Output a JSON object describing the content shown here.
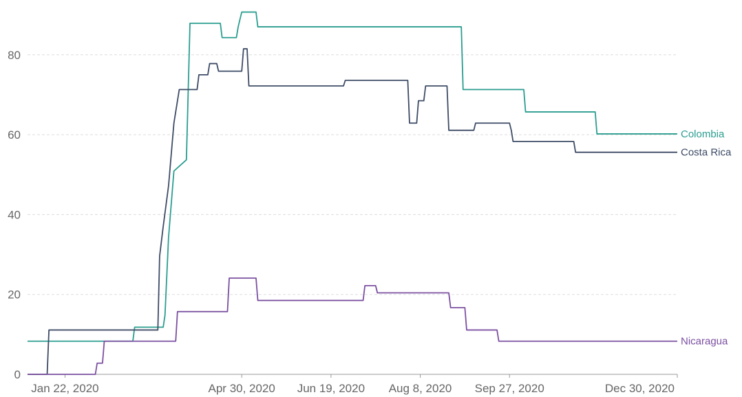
{
  "chart_data": {
    "type": "line",
    "x_axis": {
      "ticks": [
        {
          "date": "2020-01-22",
          "label": "Jan 22, 2020"
        },
        {
          "date": "2020-04-30",
          "label": "Apr 30, 2020"
        },
        {
          "date": "2020-06-19",
          "label": "Jun 19, 2020"
        },
        {
          "date": "2020-08-08",
          "label": "Aug 8, 2020"
        },
        {
          "date": "2020-09-27",
          "label": "Sep 27, 2020"
        },
        {
          "date": "2020-12-30",
          "label": "Dec 30, 2020"
        }
      ],
      "range": [
        "2020-01-01",
        "2020-12-30"
      ]
    },
    "y_axis": {
      "ticks": [
        0,
        20,
        40,
        60,
        80
      ],
      "range": [
        0,
        92
      ]
    },
    "grid": true,
    "series": [
      {
        "name": "Colombia",
        "color": "#2a9d8f",
        "points": [
          [
            "2020-01-01",
            8.3
          ],
          [
            "2020-02-29",
            8.3
          ],
          [
            "2020-03-01",
            11.8
          ],
          [
            "2020-03-17",
            11.8
          ],
          [
            "2020-03-18",
            14.8
          ],
          [
            "2020-03-20",
            34.3
          ],
          [
            "2020-03-23",
            50.9
          ],
          [
            "2020-03-30",
            53.7
          ],
          [
            "2020-04-01",
            87.9
          ],
          [
            "2020-04-18",
            87.9
          ],
          [
            "2020-04-19",
            84.3
          ],
          [
            "2020-04-27",
            84.3
          ],
          [
            "2020-04-28",
            87.0
          ],
          [
            "2020-04-30",
            90.7
          ],
          [
            "2020-05-08",
            90.7
          ],
          [
            "2020-05-09",
            87.0
          ],
          [
            "2020-08-31",
            87.0
          ],
          [
            "2020-09-01",
            71.3
          ],
          [
            "2020-10-05",
            71.3
          ],
          [
            "2020-10-06",
            65.7
          ],
          [
            "2020-11-14",
            65.7
          ],
          [
            "2020-11-15",
            60.2
          ],
          [
            "2020-12-30",
            60.2
          ]
        ]
      },
      {
        "name": "Costa Rica",
        "color": "#3d4b66",
        "points": [
          [
            "2020-01-01",
            0
          ],
          [
            "2020-01-12",
            0
          ],
          [
            "2020-01-13",
            11.1
          ],
          [
            "2020-02-29",
            11.1
          ],
          [
            "2020-03-01",
            11.1
          ],
          [
            "2020-03-14",
            11.1
          ],
          [
            "2020-03-15",
            29.6
          ],
          [
            "2020-03-17",
            37.0
          ],
          [
            "2020-03-20",
            47.2
          ],
          [
            "2020-03-23",
            62.9
          ],
          [
            "2020-03-26",
            71.3
          ],
          [
            "2020-04-05",
            71.3
          ],
          [
            "2020-04-06",
            75.0
          ],
          [
            "2020-04-11",
            75.0
          ],
          [
            "2020-04-12",
            77.8
          ],
          [
            "2020-04-16",
            77.8
          ],
          [
            "2020-04-17",
            75.9
          ],
          [
            "2020-04-30",
            75.9
          ],
          [
            "2020-05-01",
            81.5
          ],
          [
            "2020-05-03",
            81.5
          ],
          [
            "2020-05-04",
            72.2
          ],
          [
            "2020-06-26",
            72.2
          ],
          [
            "2020-06-27",
            73.6
          ],
          [
            "2020-08-01",
            73.6
          ],
          [
            "2020-08-02",
            62.9
          ],
          [
            "2020-08-06",
            62.9
          ],
          [
            "2020-08-07",
            68.5
          ],
          [
            "2020-08-10",
            68.5
          ],
          [
            "2020-08-11",
            72.2
          ],
          [
            "2020-08-23",
            72.2
          ],
          [
            "2020-08-24",
            61.1
          ],
          [
            "2020-09-07",
            61.1
          ],
          [
            "2020-09-08",
            62.9
          ],
          [
            "2020-09-27",
            62.9
          ],
          [
            "2020-09-28",
            61.1
          ],
          [
            "2020-09-29",
            58.3
          ],
          [
            "2020-11-02",
            58.3
          ],
          [
            "2020-11-03",
            55.6
          ],
          [
            "2020-12-30",
            55.6
          ]
        ]
      },
      {
        "name": "Nicaragua",
        "color": "#7b4fa0",
        "points": [
          [
            "2020-01-01",
            0
          ],
          [
            "2020-02-08",
            0
          ],
          [
            "2020-02-09",
            2.8
          ],
          [
            "2020-02-12",
            2.8
          ],
          [
            "2020-02-13",
            8.3
          ],
          [
            "2020-03-24",
            8.3
          ],
          [
            "2020-03-25",
            15.7
          ],
          [
            "2020-04-22",
            15.7
          ],
          [
            "2020-04-23",
            24.1
          ],
          [
            "2020-05-08",
            24.1
          ],
          [
            "2020-05-09",
            18.5
          ],
          [
            "2020-07-07",
            18.5
          ],
          [
            "2020-07-08",
            22.2
          ],
          [
            "2020-07-14",
            22.2
          ],
          [
            "2020-07-15",
            20.4
          ],
          [
            "2020-08-24",
            20.4
          ],
          [
            "2020-08-25",
            16.7
          ],
          [
            "2020-09-02",
            16.7
          ],
          [
            "2020-09-03",
            11.1
          ],
          [
            "2020-09-20",
            11.1
          ],
          [
            "2020-09-21",
            8.3
          ],
          [
            "2020-12-30",
            8.3
          ]
        ]
      }
    ]
  }
}
